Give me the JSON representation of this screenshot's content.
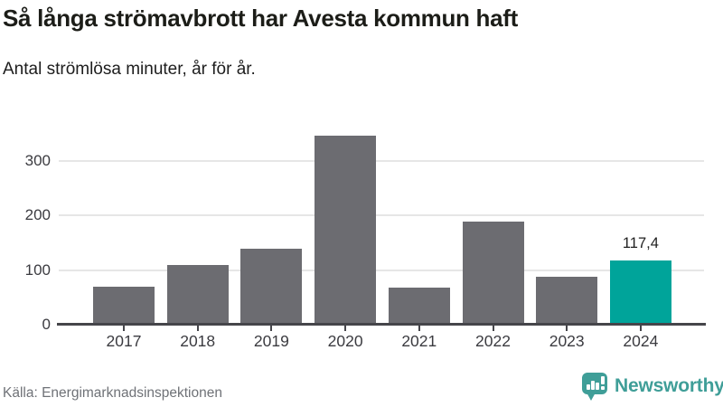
{
  "header": {
    "title": "Så långa strömavbrott har Avesta kommun haft",
    "subtitle": "Antal strömlösa minuter, år för år."
  },
  "chart_data": {
    "type": "bar",
    "title": "Så långa strömavbrott har Avesta kommun haft",
    "subtitle": "Antal strömlösa minuter, år för år.",
    "xlabel": "",
    "ylabel": "Antal strömlösa minuter",
    "categories": [
      "2017",
      "2018",
      "2019",
      "2020",
      "2021",
      "2022",
      "2023",
      "2024"
    ],
    "values": [
      69,
      109,
      139,
      346,
      68,
      189,
      88,
      117.4
    ],
    "value_labels": [
      "",
      "",
      "",
      "",
      "",
      "",
      "",
      "117,4"
    ],
    "highlight_index": 7,
    "bar_color": "#6c6c71",
    "highlight_color": "#00a49a",
    "yticks": [
      0,
      100,
      200,
      300
    ],
    "ylim": [
      0,
      362
    ],
    "grid": true,
    "legend": "none"
  },
  "footer": {
    "source": "Källa: Energimarknadsinspektionen",
    "brand_name": "Newsworthy",
    "brand_color": "#3f9e98"
  }
}
